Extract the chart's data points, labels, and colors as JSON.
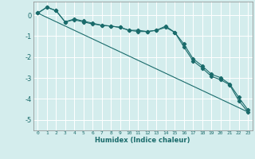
{
  "xlabel": "Humidex (Indice chaleur)",
  "ylabel": "",
  "background_color": "#d4eded",
  "grid_color": "#ffffff",
  "line_color": "#1a6b6b",
  "xlim": [
    -0.5,
    23.5
  ],
  "ylim": [
    -5.5,
    0.65
  ],
  "yticks": [
    0,
    -1,
    -2,
    -3,
    -4,
    -5
  ],
  "xticks": [
    0,
    1,
    2,
    3,
    4,
    5,
    6,
    7,
    8,
    9,
    10,
    11,
    12,
    13,
    14,
    15,
    16,
    17,
    18,
    19,
    20,
    21,
    22,
    23
  ],
  "series1_x": [
    0,
    1,
    2,
    3,
    4,
    5,
    6,
    7,
    8,
    9,
    10,
    11,
    12,
    13,
    14,
    15,
    16,
    17,
    18,
    19,
    20,
    21,
    22,
    23
  ],
  "series1_y": [
    0.1,
    0.38,
    0.22,
    -0.32,
    -0.22,
    -0.32,
    -0.42,
    -0.48,
    -0.52,
    -0.58,
    -0.72,
    -0.72,
    -0.78,
    -0.72,
    -0.58,
    -0.82,
    -1.52,
    -2.18,
    -2.52,
    -2.92,
    -3.08,
    -3.32,
    -4.08,
    -4.62
  ],
  "series2_x": [
    0,
    1,
    2,
    3,
    4,
    5,
    6,
    7,
    8,
    9,
    10,
    11,
    12,
    13,
    14,
    15,
    16,
    17,
    18,
    19,
    20,
    21,
    22,
    23
  ],
  "series2_y": [
    0.1,
    0.38,
    0.22,
    -0.32,
    -0.18,
    -0.28,
    -0.38,
    -0.48,
    -0.52,
    -0.58,
    -0.72,
    -0.78,
    -0.78,
    -0.72,
    -0.52,
    -0.82,
    -1.38,
    -2.08,
    -2.42,
    -2.82,
    -2.98,
    -3.28,
    -3.92,
    -4.52
  ],
  "series3_x": [
    0,
    23
  ],
  "series3_y": [
    0.1,
    -4.62
  ]
}
